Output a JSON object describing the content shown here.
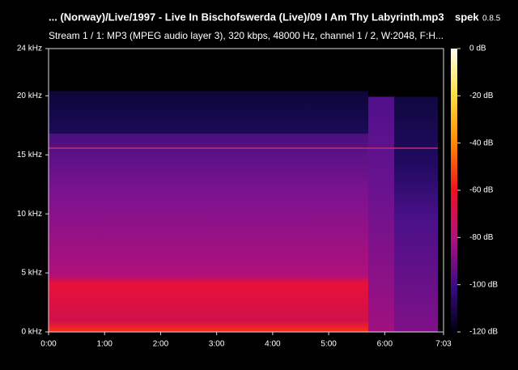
{
  "header": {
    "title": "... (Norway)/Live/1997 - Live In Bischofswerda (Live)/09 I Am Thy Labyrinth.mp3",
    "app": "spek",
    "version": "0.8.5",
    "subtitle": "Stream 1 / 1: MP3 (MPEG audio layer 3), 320 kbps, 48000 Hz, channel 1 / 2, W:2048, F:H..."
  },
  "y_axis": {
    "ylim": [
      0,
      24
    ],
    "yticks": [
      {
        "value": 0,
        "label": "0 kHz"
      },
      {
        "value": 5,
        "label": "5 kHz"
      },
      {
        "value": 10,
        "label": "10 kHz"
      },
      {
        "value": 15,
        "label": "15 kHz"
      },
      {
        "value": 20,
        "label": "20 kHz"
      },
      {
        "value": 24,
        "label": "24 kHz"
      }
    ]
  },
  "x_axis": {
    "xlim": [
      0,
      423
    ],
    "xticks": [
      {
        "value": 0,
        "label": "0:00"
      },
      {
        "value": 60,
        "label": "1:00"
      },
      {
        "value": 120,
        "label": "2:00"
      },
      {
        "value": 180,
        "label": "3:00"
      },
      {
        "value": 240,
        "label": "4:00"
      },
      {
        "value": 300,
        "label": "5:00"
      },
      {
        "value": 360,
        "label": "6:00"
      },
      {
        "value": 423,
        "label": "7:03"
      }
    ]
  },
  "colorbar": {
    "lim": [
      -120,
      0
    ],
    "ticks": [
      {
        "value": 0,
        "label": "0 dB"
      },
      {
        "value": -20,
        "label": "-20 dB"
      },
      {
        "value": -40,
        "label": "-40 dB"
      },
      {
        "value": -60,
        "label": "-60 dB"
      },
      {
        "value": -80,
        "label": "-80 dB"
      },
      {
        "value": -100,
        "label": "-100 dB"
      },
      {
        "value": -120,
        "label": "-120 dB"
      }
    ]
  }
}
